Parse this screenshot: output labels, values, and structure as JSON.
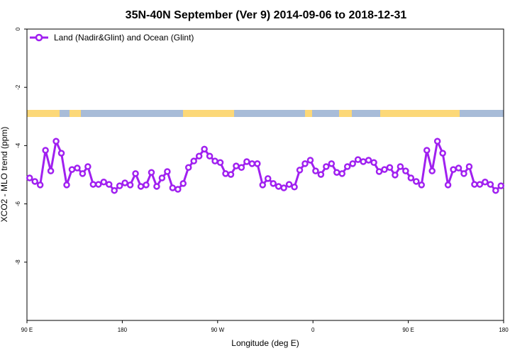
{
  "chart_data": {
    "type": "line",
    "title": "35N-40N September (Ver 9)   2014-09-06 to 2018-12-31",
    "x_label": "Longitude (deg E)",
    "y_label": "XCO2 - MLO trend (ppm)",
    "xlim": [
      90,
      540
    ],
    "xticks": [
      {
        "value": 90,
        "label": "90 E"
      },
      {
        "value": 180,
        "label": "180"
      },
      {
        "value": 270,
        "label": "90 W"
      },
      {
        "value": 360,
        "label": "0"
      },
      {
        "value": 450,
        "label": "90 E"
      },
      {
        "value": 540,
        "label": "180"
      }
    ],
    "ylim": [
      -10,
      0
    ],
    "yticks": [
      0,
      -2,
      -4,
      -6,
      -8
    ],
    "legend_position": "top-left",
    "x": [
      92.5,
      97.5,
      102.5,
      107.5,
      112.5,
      117.5,
      122.5,
      127.5,
      132.5,
      137.5,
      142.5,
      147.5,
      152.5,
      157.5,
      162.5,
      167.5,
      172.5,
      177.5,
      182.5,
      187.5,
      192.5,
      197.5,
      202.5,
      207.5,
      212.5,
      217.5,
      222.5,
      227.5,
      232.5,
      237.5,
      242.5,
      247.5,
      252.5,
      257.5,
      262.5,
      267.5,
      272.5,
      277.5,
      282.5,
      287.5,
      292.5,
      297.5,
      302.5,
      307.5,
      312.5,
      317.5,
      322.5,
      327.5,
      332.5,
      337.5,
      342.5,
      347.5,
      352.5,
      357.5,
      362.5,
      367.5,
      372.5,
      377.5,
      382.5,
      387.5,
      392.5,
      397.5,
      402.5,
      407.5,
      412.5,
      417.5,
      422.5,
      427.5,
      432.5,
      437.5,
      442.5,
      447.5,
      452.5,
      457.5,
      462.5,
      467.5,
      472.5,
      477.5,
      482.5,
      487.5,
      492.5,
      497.5,
      502.5,
      507.5,
      512.5,
      517.5,
      522.5,
      527.5,
      532.5,
      537.5
    ],
    "series": [
      {
        "name": "Land (Nadir&Glint) and Ocean (Glint)",
        "color": "#a020f0",
        "values": [
          -5.11,
          -5.23,
          -5.35,
          -4.16,
          -4.87,
          -3.85,
          -4.26,
          -5.35,
          -4.82,
          -4.77,
          -4.96,
          -4.72,
          -5.33,
          -5.33,
          -5.25,
          -5.33,
          -5.54,
          -5.38,
          -5.28,
          -5.35,
          -4.96,
          -5.4,
          -5.35,
          -4.92,
          -5.4,
          -5.11,
          -4.89,
          -5.45,
          -5.5,
          -5.3,
          -4.75,
          -4.53,
          -4.36,
          -4.12,
          -4.36,
          -4.53,
          -4.58,
          -4.96,
          -4.99,
          -4.7,
          -4.75,
          -4.55,
          -4.62,
          -4.62,
          -5.35,
          -5.13,
          -5.3,
          -5.4,
          -5.45,
          -5.33,
          -5.42,
          -4.84,
          -4.62,
          -4.5,
          -4.87,
          -4.99,
          -4.72,
          -4.62,
          -4.92,
          -4.96,
          -4.72,
          -4.62,
          -4.48,
          -4.55,
          -4.5,
          -4.58,
          -4.89,
          -4.82,
          -4.75,
          -5.01,
          -4.72,
          -4.87,
          -5.11,
          -5.23,
          -5.35,
          -4.16,
          -4.87,
          -3.85,
          -4.26,
          -5.35,
          -4.82,
          -4.77,
          -4.96,
          -4.72,
          -5.33,
          -5.33,
          -5.25,
          -5.33,
          -5.54,
          -5.38
        ]
      }
    ]
  }
}
